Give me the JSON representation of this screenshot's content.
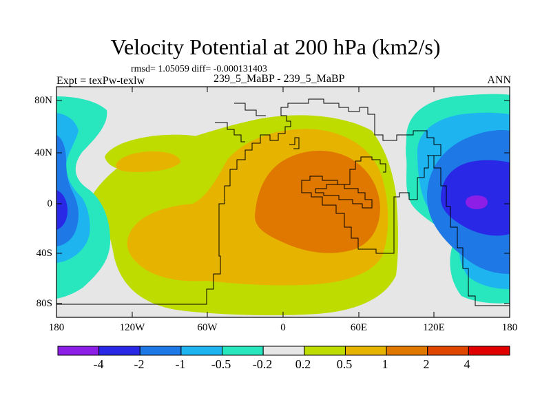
{
  "title": "Velocity Potential at 200 hPa (km2/s)",
  "stats": "rmsd= 1.05059 diff= -0.000131403",
  "experiment": "Expt = texPw-texlw",
  "center_label": "239_5_MaBP - 239_5_MaBP",
  "season": "ANN",
  "lat_ticks": [
    "80N",
    "40N",
    "0",
    "40S",
    "80S"
  ],
  "lon_ticks": [
    "180",
    "120W",
    "60W",
    "0",
    "60E",
    "120E",
    "180"
  ],
  "colorbar": {
    "colors": [
      "#8c1ee6",
      "#2828e6",
      "#1e78e6",
      "#1eb4f0",
      "#28e6be",
      "#e6e6e6",
      "#bedc00",
      "#e6b400",
      "#e07800",
      "#e04600",
      "#e00000"
    ],
    "labels": [
      "-4",
      "-2",
      "-1",
      "-0.5",
      "-0.2",
      "0.2",
      "0.5",
      "1",
      "2",
      "4"
    ]
  },
  "palette": {
    "background": "#e6e6e6",
    "coastline": "#000000"
  }
}
